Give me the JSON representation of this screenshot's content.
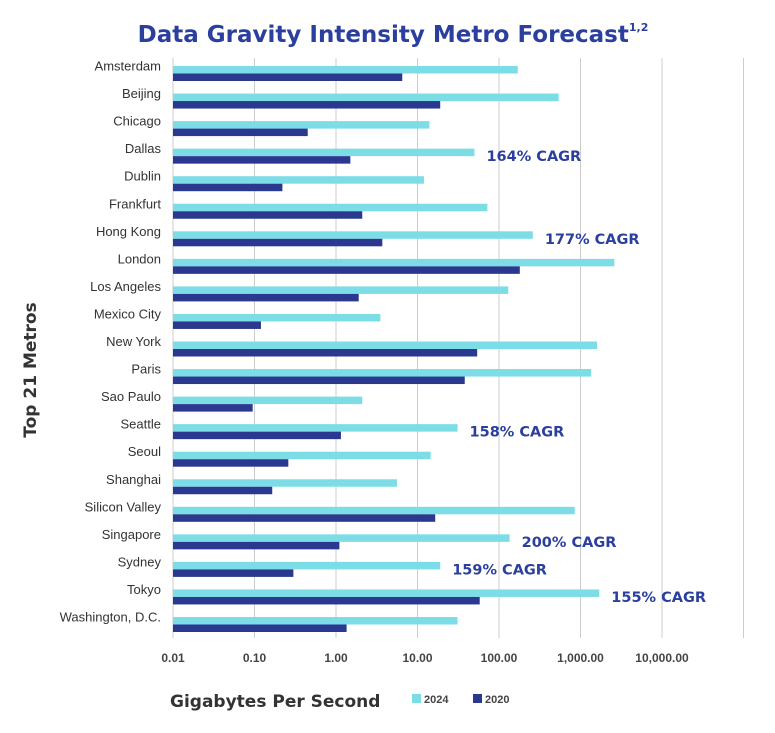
{
  "colors": {
    "title": "#2b3f9e",
    "series_2024": "#7ddde6",
    "series_2020": "#2b3890",
    "annotation": "#2b3f9e",
    "gridline": "#cccccc"
  },
  "chart_data": {
    "type": "bar",
    "orientation": "horizontal",
    "title": "Data Gravity Intensity Metro Forecast",
    "title_superscript": "1,2",
    "xlabel": "Gigabytes Per Second",
    "ylabel": "Top 21 Metros",
    "x_scale": "log",
    "xlim": [
      0.01,
      100000
    ],
    "x_ticks": [
      "0.01",
      "0.10",
      "1.00",
      "10.00",
      "100.00",
      "1,000.00",
      "10,000.00"
    ],
    "x_tick_values": [
      0.01,
      0.1,
      1,
      10,
      100,
      1000,
      10000
    ],
    "grid": true,
    "legend_position": "bottom",
    "categories": [
      "Amsterdam",
      "Beijing",
      "Chicago",
      "Dallas",
      "Dublin",
      "Frankfurt",
      "Hong Kong",
      "London",
      "Los Angeles",
      "Mexico City",
      "New York",
      "Paris",
      "Sao Paulo",
      "Seattle",
      "Seoul",
      "Shanghai",
      "Silicon Valley",
      "Singapore",
      "Sydney",
      "Tokyo",
      "Washington, D.C."
    ],
    "series": [
      {
        "name": "2024",
        "values": [
          170,
          540,
          14,
          50,
          12,
          72,
          260,
          2600,
          130,
          3.5,
          1600,
          1350,
          2.1,
          31,
          14.5,
          5.6,
          850,
          135,
          19,
          1700,
          31
        ]
      },
      {
        "name": "2020",
        "values": [
          6.5,
          19,
          0.45,
          1.5,
          0.22,
          2.1,
          3.7,
          180,
          1.9,
          0.12,
          54,
          38,
          0.095,
          1.15,
          0.26,
          0.165,
          16.5,
          1.1,
          0.3,
          58,
          1.35
        ]
      }
    ],
    "annotations": [
      {
        "category": "Dallas",
        "text": "164% CAGR"
      },
      {
        "category": "Hong Kong",
        "text": "177% CAGR"
      },
      {
        "category": "Seattle",
        "text": "158% CAGR"
      },
      {
        "category": "Singapore",
        "text": "200% CAGR"
      },
      {
        "category": "Sydney",
        "text": "159% CAGR"
      },
      {
        "category": "Tokyo",
        "text": "155% CAGR"
      }
    ]
  }
}
